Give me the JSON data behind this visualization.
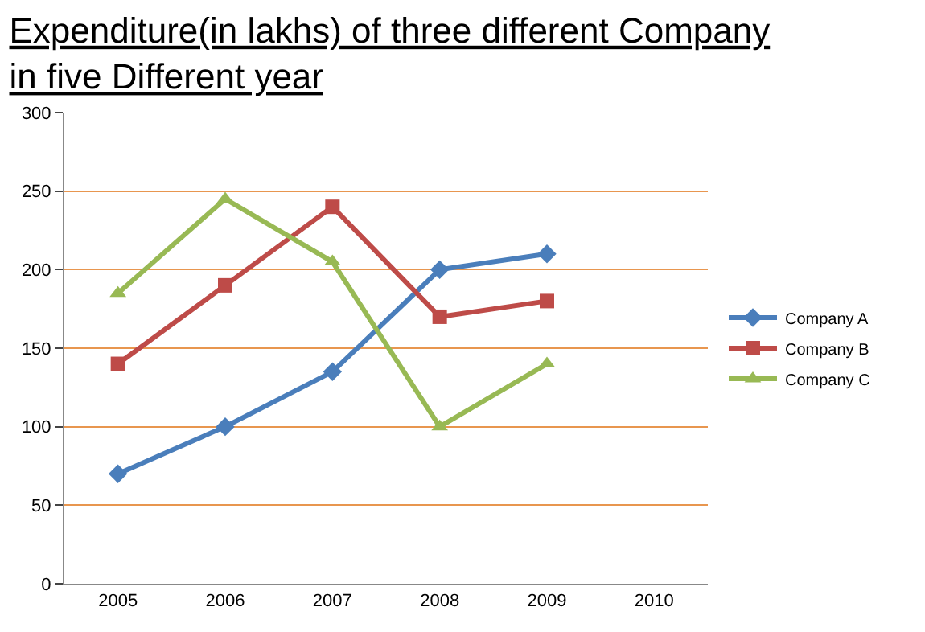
{
  "chart_data": {
    "type": "line",
    "title": "Expenditure(in lakhs) of three different Company\nin five Different year",
    "categories": [
      "2005",
      "2006",
      "2007",
      "2008",
      "2009",
      "2010"
    ],
    "series": [
      {
        "name": "Company A",
        "color": "#4a7ebb",
        "marker": "diamond",
        "values": [
          70,
          100,
          135,
          200,
          210,
          null
        ]
      },
      {
        "name": "Company B",
        "color": "#be4b48",
        "marker": "square",
        "values": [
          140,
          190,
          240,
          170,
          180,
          null
        ]
      },
      {
        "name": "Company C",
        "color": "#98b954",
        "marker": "triangle",
        "values": [
          185,
          245,
          205,
          100,
          140,
          null
        ]
      }
    ],
    "ylim": [
      0,
      300
    ],
    "yticks": [
      0,
      50,
      100,
      150,
      200,
      250,
      300
    ],
    "grid": "y",
    "legend": "right"
  }
}
